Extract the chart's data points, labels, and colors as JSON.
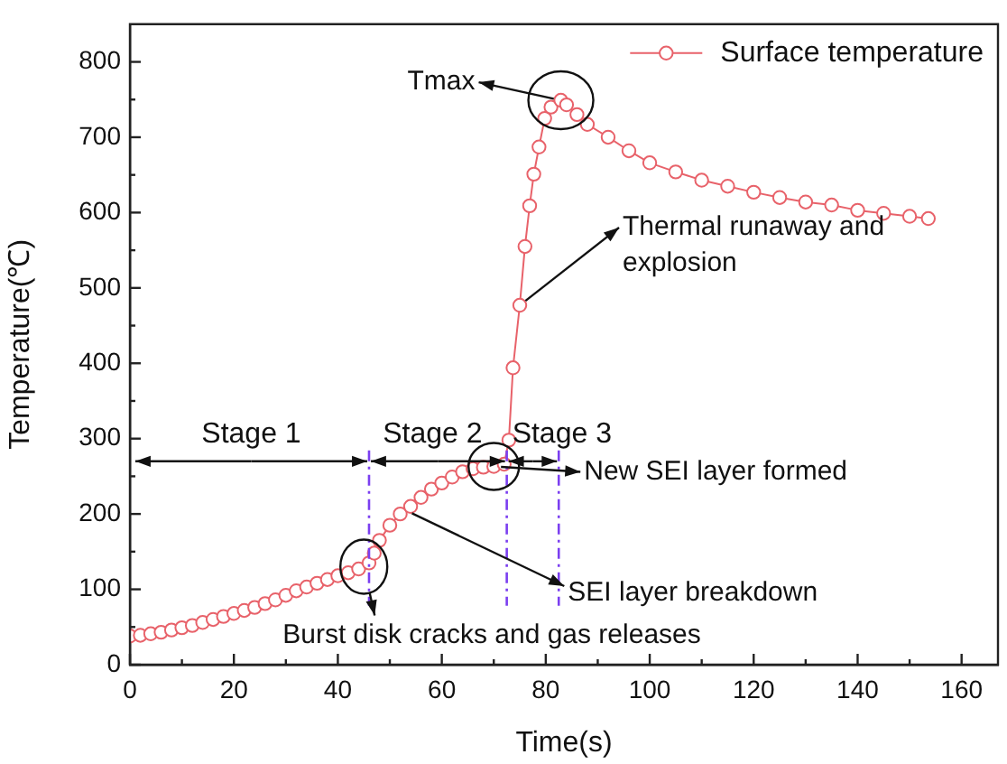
{
  "chart_data": {
    "type": "line",
    "xlabel": "Time(s)",
    "ylabel": "Temperature(℃)",
    "xlim": [
      0,
      167
    ],
    "ylim": [
      0,
      850
    ],
    "xticks": [
      0,
      {
        "value": 10,
        "label": null
      },
      20,
      {
        "value": 30,
        "label": null
      },
      40,
      {
        "value": 50,
        "label": null
      },
      60,
      {
        "value": 70,
        "label": null
      },
      80,
      {
        "value": 90,
        "label": null
      },
      100,
      {
        "value": 110,
        "label": null
      },
      120,
      {
        "value": 130,
        "label": null
      },
      140,
      {
        "value": 150,
        "label": null
      },
      160
    ],
    "yticks": [
      0,
      {
        "value": 50,
        "label": null
      },
      100,
      {
        "value": 150,
        "label": null
      },
      200,
      {
        "value": 250,
        "label": null
      },
      300,
      {
        "value": 350,
        "label": null
      },
      400,
      {
        "value": 450,
        "label": null
      },
      500,
      {
        "value": 550,
        "label": null
      },
      600,
      {
        "value": 650,
        "label": null
      },
      700,
      {
        "value": 750,
        "label": null
      },
      800
    ],
    "grid": false,
    "legend": "top right",
    "marker": "circle",
    "line_style": "solid",
    "series": [
      {
        "name": "Surface temperature",
        "color": "#e8626a",
        "x": [
          0,
          2,
          4,
          6,
          8,
          10,
          12,
          14,
          16,
          18,
          20,
          22,
          24,
          26,
          28,
          30,
          32,
          34,
          36,
          38,
          40,
          42,
          44,
          46,
          47,
          48,
          50,
          52,
          54,
          56,
          58,
          60,
          62,
          64,
          66,
          68,
          70,
          72,
          72.9,
          73.7,
          75,
          76,
          76.9,
          77.7,
          78.7,
          79.8,
          81,
          82.9,
          84,
          86,
          88,
          92,
          96,
          100,
          105,
          110,
          115,
          120,
          125,
          130,
          135,
          140,
          145,
          150,
          153.6
        ],
        "values": [
          38,
          39,
          41,
          43,
          46,
          49,
          52,
          56,
          60,
          64,
          68,
          72,
          76,
          81,
          86,
          92,
          98,
          103,
          108,
          113,
          118,
          122,
          127,
          135,
          148,
          165,
          185,
          200,
          210,
          222,
          233,
          241,
          249,
          256,
          260,
          262,
          263,
          266,
          298,
          394,
          477,
          555,
          609,
          651,
          687,
          725,
          740,
          749,
          743,
          730,
          717,
          700,
          682,
          666,
          654,
          643,
          635,
          627,
          620,
          614,
          610,
          603,
          599,
          595,
          592
        ]
      }
    ],
    "ref_lines": [
      {
        "axis": "x",
        "value": 46,
        "color": "#7b3ff0",
        "line_style": "dashed"
      },
      {
        "axis": "x",
        "value": 72.5,
        "color": "#7b3ff0",
        "line_style": "dashed"
      },
      {
        "axis": "x",
        "value": 82.5,
        "color": "#7b3ff0",
        "line_style": "dashed"
      }
    ],
    "annotations": [
      {
        "text": "Tmax",
        "x": 82.9,
        "y": 749
      },
      {
        "text": "Thermal runaway and explosion",
        "x": 75,
        "y": 477
      },
      {
        "text": "New SEI layer formed",
        "x": 70,
        "y": 263
      },
      {
        "text": "SEI layer breakdown",
        "x": 53,
        "y": 205
      },
      {
        "text": "Burst disk cracks and gas releases",
        "x": 45,
        "y": 130
      },
      "Stage 1",
      "Stage 2",
      "Stage 3"
    ]
  }
}
